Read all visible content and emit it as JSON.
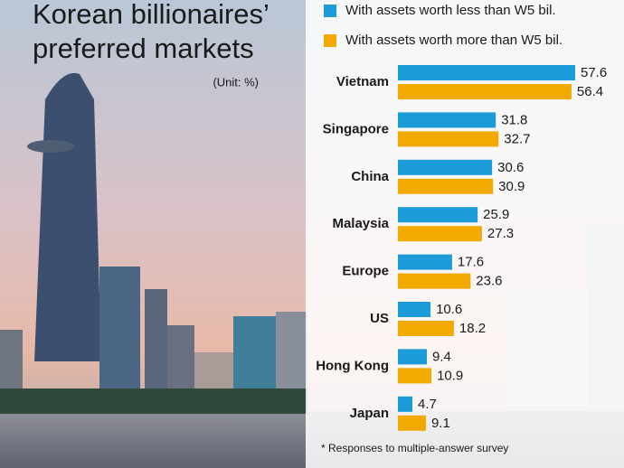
{
  "chart_data": {
    "type": "bar",
    "orientation": "horizontal",
    "title": "Korean billionaires’ preferred markets",
    "unit": "(Unit: %)",
    "categories": [
      "Vietnam",
      "Singapore",
      "China",
      "Malaysia",
      "Europe",
      "US",
      "Hong Kong",
      "Japan"
    ],
    "series": [
      {
        "name": "With assets worth less than W5 bil.",
        "color": "#1b9bd7",
        "values": [
          57.6,
          31.8,
          30.6,
          25.9,
          17.6,
          10.6,
          9.4,
          4.7
        ]
      },
      {
        "name": "With assets worth more than W5 bil.",
        "color": "#f2a900",
        "values": [
          56.4,
          32.7,
          30.9,
          27.3,
          23.6,
          18.2,
          10.9,
          9.1
        ]
      }
    ],
    "note": "* Responses to multiple-answer survey"
  }
}
